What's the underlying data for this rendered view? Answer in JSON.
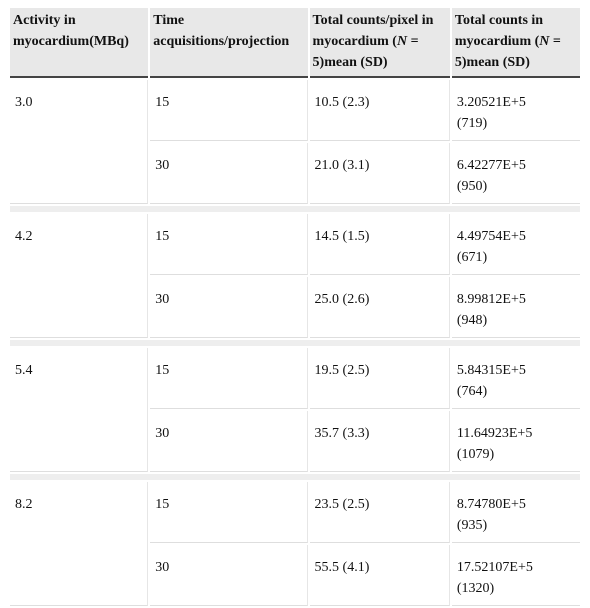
{
  "headers": [
    {
      "lines": [
        "Activity in",
        "myocardium(MBq)"
      ]
    },
    {
      "lines": [
        "Time",
        "acquisitions/projection"
      ]
    },
    {
      "lines": [
        "Total counts/pixel in",
        "myocardium (",
        "N",
        " =",
        "5)mean (SD)"
      ]
    },
    {
      "lines": [
        "Total counts in",
        "myocardium (",
        "N",
        " =",
        "5)mean (SD)"
      ]
    }
  ],
  "header_text": {
    "activity_line1": "Activity in",
    "activity_line2": "myocardium(MBq)",
    "time_line1": "Time",
    "time_line2": "acquisitions/projection",
    "pix_line1": "Total counts/pixel in",
    "pix_line2a": "myocardium (",
    "pix_n": "N",
    "pix_line2b": " =",
    "pix_line3": "5)mean (SD)",
    "total_line1": "Total counts in",
    "total_line2a": "myocardium (",
    "total_n": "N",
    "total_line2b": " =",
    "total_line3": "5)mean (SD)"
  },
  "groups": [
    {
      "activity": "3.0",
      "rows": [
        {
          "time": "15",
          "pixel": "10.5 (2.3)",
          "total_line1": "3.20521E+5",
          "total_line2": "(719)"
        },
        {
          "time": "30",
          "pixel": "21.0 (3.1)",
          "total_line1": "6.42277E+5",
          "total_line2": "(950)"
        }
      ]
    },
    {
      "activity": "4.2",
      "rows": [
        {
          "time": "15",
          "pixel": "14.5 (1.5)",
          "total_line1": "4.49754E+5",
          "total_line2": "(671)"
        },
        {
          "time": "30",
          "pixel": "25.0 (2.6)",
          "total_line1": "8.99812E+5",
          "total_line2": "(948)"
        }
      ]
    },
    {
      "activity": "5.4",
      "rows": [
        {
          "time": "15",
          "pixel": "19.5 (2.5)",
          "total_line1": "5.84315E+5",
          "total_line2": "(764)"
        },
        {
          "time": "30",
          "pixel": "35.7 (3.3)",
          "total_line1": "11.64923E+5",
          "total_line2": "(1079)"
        }
      ]
    },
    {
      "activity": "8.2",
      "rows": [
        {
          "time": "15",
          "pixel": "23.5 (2.5)",
          "total_line1": "8.74780E+5",
          "total_line2": "(935)"
        },
        {
          "time": "30",
          "pixel": "55.5 (4.1)",
          "total_line1": "17.52107E+5",
          "total_line2": "(1320)"
        }
      ]
    }
  ]
}
